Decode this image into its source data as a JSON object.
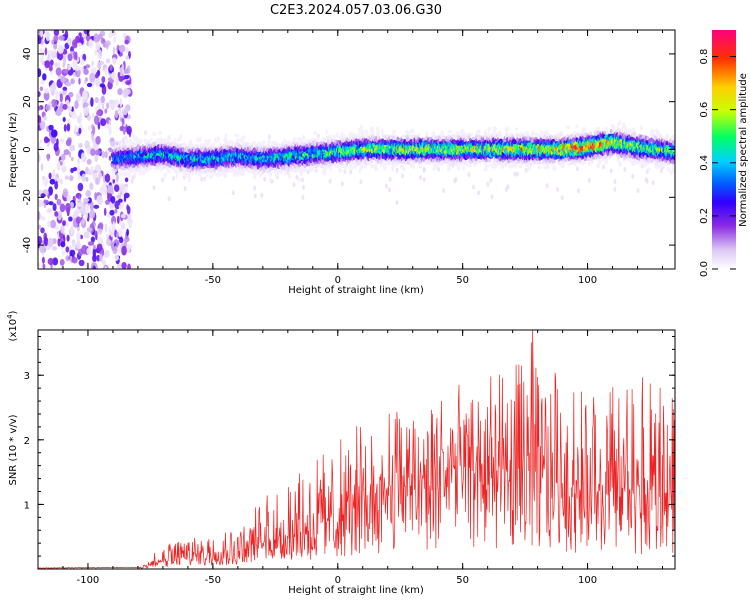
{
  "title": "C2E3.2024.057.03.06.G30",
  "chart_data": [
    {
      "type": "heatmap",
      "xlabel": "Height of straight line (km)",
      "ylabel": "Frequency (Hz)",
      "xlim": [
        -120,
        135
      ],
      "ylim": [
        -50,
        50
      ],
      "xticks": [
        -100,
        -50,
        0,
        50,
        100
      ],
      "yticks": [
        -40,
        -20,
        0,
        20,
        40
      ],
      "grid": false,
      "colorbar": {
        "label": "Normalized spectral amplitude",
        "range": [
          0,
          0.9
        ],
        "ticks": [
          0.0,
          0.2,
          0.4,
          0.6,
          0.8
        ],
        "colormap": [
          "#ffffff",
          "#dcc8f5",
          "#8a2be2",
          "#3000ff",
          "#0060ff",
          "#00d0ff",
          "#00ff66",
          "#c8ff00",
          "#ffd000",
          "#ff3000",
          "#ff0080"
        ]
      },
      "ridge": {
        "description_free": true,
        "x": [
          -90,
          -80,
          -70,
          -60,
          -50,
          -40,
          -30,
          -20,
          -10,
          0,
          10,
          20,
          30,
          40,
          50,
          60,
          70,
          80,
          90,
          100,
          110,
          120,
          135
        ],
        "center_hz": [
          -4,
          -3,
          -2,
          -4,
          -4,
          -3,
          -4,
          -3,
          -2,
          -1,
          0,
          0,
          0,
          0,
          0,
          0,
          0,
          0,
          0,
          1,
          3,
          1,
          -1
        ],
        "peak_amplitude": [
          0.35,
          0.4,
          0.45,
          0.45,
          0.45,
          0.45,
          0.45,
          0.5,
          0.5,
          0.55,
          0.6,
          0.6,
          0.65,
          0.6,
          0.65,
          0.65,
          0.7,
          0.7,
          0.75,
          0.9,
          0.7,
          0.6,
          0.55
        ]
      },
      "noise_region_x": [
        -120,
        -83
      ]
    },
    {
      "type": "line",
      "xlabel": "Height of straight line (km)",
      "ylabel": "SNR (10 * v/v)",
      "y_multiplier": "(x10^4)",
      "xlim": [
        -120,
        135
      ],
      "ylim": [
        0,
        3.7
      ],
      "xticks": [
        -100,
        -50,
        0,
        50,
        100
      ],
      "yticks": [
        1,
        2,
        3
      ],
      "grid": false,
      "color": "#ee2222",
      "series": [
        {
          "x": [
            -120,
            -80,
            -70,
            -60,
            -50,
            -40,
            -30,
            -20,
            -10,
            0,
            10,
            20,
            30,
            40,
            50,
            60,
            70,
            78,
            90,
            100,
            110,
            120,
            135
          ],
          "y_mean": [
            0.01,
            0.02,
            0.12,
            0.2,
            0.25,
            0.28,
            0.4,
            0.5,
            0.65,
            0.8,
            1.0,
            1.2,
            1.3,
            1.45,
            1.5,
            1.5,
            1.45,
            1.5,
            1.3,
            1.2,
            1.2,
            1.1,
            1.1
          ],
          "y_max": [
            0.02,
            0.05,
            0.35,
            0.55,
            0.6,
            0.7,
            1.1,
            1.4,
            1.7,
            2.0,
            2.3,
            2.5,
            2.6,
            2.8,
            2.9,
            3.0,
            3.1,
            3.7,
            2.9,
            2.8,
            2.9,
            3.0,
            2.8
          ]
        }
      ]
    }
  ]
}
